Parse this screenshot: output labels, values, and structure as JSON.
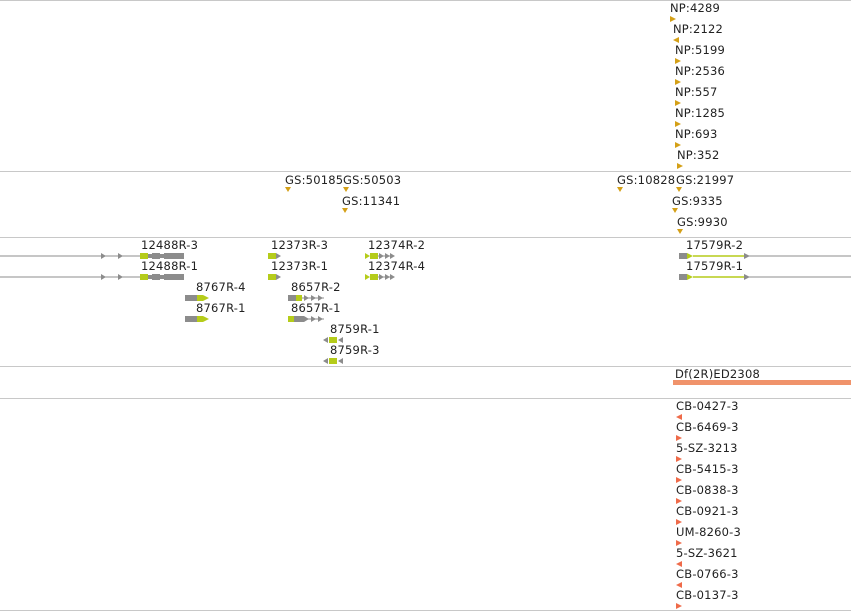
{
  "colors": {
    "np_marker": "#d4a017",
    "gs_marker": "#d4a017",
    "gene_grey": "#8c8c8c",
    "gene_green": "#b5cc1a",
    "deficiency_bar": "#f0936b",
    "cb_marker": "#ef6b4a",
    "separator": "#c8c8c8"
  },
  "np_track": {
    "features": [
      {
        "label": "NP:4289",
        "dir": "right"
      },
      {
        "label": "NP:2122",
        "dir": "left"
      },
      {
        "label": "NP:5199",
        "dir": "right"
      },
      {
        "label": "NP:2536",
        "dir": "right"
      },
      {
        "label": "NP:557",
        "dir": "right"
      },
      {
        "label": "NP:1285",
        "dir": "right"
      },
      {
        "label": "NP:693",
        "dir": "right"
      },
      {
        "label": "NP:352",
        "dir": "right"
      }
    ]
  },
  "gs_track": {
    "features": [
      {
        "label": "GS:50185",
        "dir": "down"
      },
      {
        "label": "GS:50503",
        "dir": "down"
      },
      {
        "label": "GS:11341",
        "dir": "down"
      },
      {
        "label": "GS:10828",
        "dir": "down"
      },
      {
        "label": "GS:21997",
        "dir": "down"
      },
      {
        "label": "GS:9335",
        "dir": "down"
      },
      {
        "label": "GS:9930",
        "dir": "down"
      }
    ]
  },
  "gene_track": {
    "genes": [
      {
        "label": "12488R-3"
      },
      {
        "label": "12488R-1"
      },
      {
        "label": "8767R-4"
      },
      {
        "label": "8767R-1"
      },
      {
        "label": "12373R-3"
      },
      {
        "label": "12373R-1"
      },
      {
        "label": "8657R-2"
      },
      {
        "label": "8657R-1"
      },
      {
        "label": "12374R-2"
      },
      {
        "label": "12374R-4"
      },
      {
        "label": "8759R-1"
      },
      {
        "label": "8759R-3"
      },
      {
        "label": "17579R-2"
      },
      {
        "label": "17579R-1"
      }
    ]
  },
  "deficiency_track": {
    "label": "Df(2R)ED2308"
  },
  "cb_track": {
    "features": [
      {
        "label": "CB-0427-3",
        "dir": "left"
      },
      {
        "label": "CB-6469-3",
        "dir": "right"
      },
      {
        "label": "5-SZ-3213",
        "dir": "right"
      },
      {
        "label": "CB-5415-3",
        "dir": "right"
      },
      {
        "label": "CB-0838-3",
        "dir": "right"
      },
      {
        "label": "CB-0921-3",
        "dir": "right"
      },
      {
        "label": "UM-8260-3",
        "dir": "right"
      },
      {
        "label": "5-SZ-3621",
        "dir": "left"
      },
      {
        "label": "CB-0766-3",
        "dir": "left"
      },
      {
        "label": "CB-0137-3",
        "dir": "right"
      }
    ]
  }
}
